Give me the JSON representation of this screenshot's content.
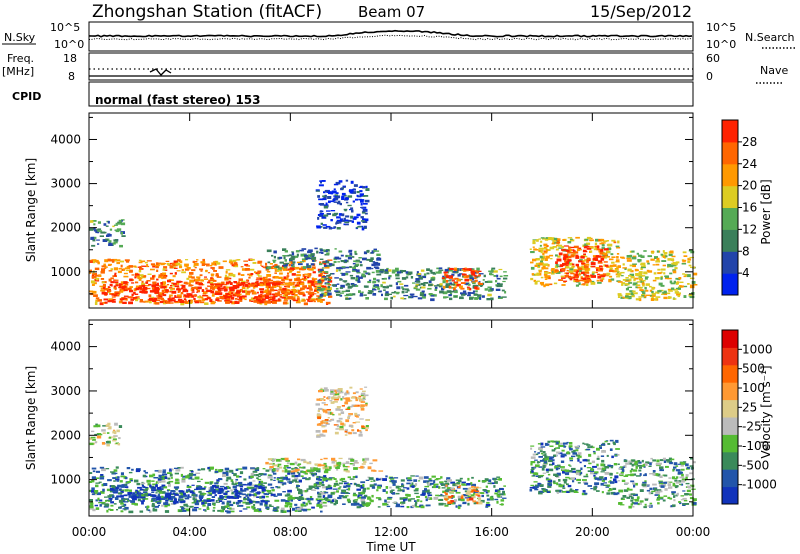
{
  "header": {
    "station": "Zhongshan Station (fitACF)",
    "beam": "Beam 07",
    "date": "15/Sep/2012"
  },
  "top_panels": {
    "nsky_label": "N.Sky",
    "nsky_ticks": [
      "10^5",
      "10^0"
    ],
    "nsearch_label": "N.Search",
    "nsearch_ticks": [
      "10^5",
      "10^0"
    ],
    "freq_label": "Freq.",
    "freq_unit": "[MHz]",
    "freq_ticks": [
      "18",
      "8"
    ],
    "nave_label": "Nave",
    "nave_ticks": [
      "60",
      "0"
    ],
    "cpid_label": "CPID",
    "cpid_value": "normal (fast stereo) 153"
  },
  "colors": {
    "power_scale": [
      "#0022ee",
      "#2244aa",
      "#3a7f5a",
      "#55aa55",
      "#ddcc22",
      "#ff9900",
      "#ff6600",
      "#ff2200"
    ],
    "velocity_scale": [
      "#1133bb",
      "#2255aa",
      "#3a8a5a",
      "#55bb33",
      "#bbbbbb",
      "#ddcc88",
      "#ff9933",
      "#ff6600",
      "#ee3311",
      "#dd0000"
    ]
  },
  "chart_data": [
    {
      "type": "heatmap",
      "name": "power",
      "ylabel": "Slant Range [km]",
      "yticks": [
        "4000",
        "3000",
        "2000",
        "1000"
      ],
      "yrange": [
        180,
        4600
      ],
      "colorbar_label": "Power [dB]",
      "colorbar_ticks": [
        "28",
        "24",
        "20",
        "16",
        "12",
        "8",
        "4"
      ],
      "colorbar_range": [
        0,
        30
      ],
      "regions": [
        {
          "t0": 0.0,
          "t1": 9.5,
          "r0": 300,
          "r1": 1300,
          "level": 0.75
        },
        {
          "t0": 0.5,
          "t1": 7.5,
          "r0": 320,
          "r1": 800,
          "level": 0.95
        },
        {
          "t0": 6.5,
          "t1": 9.5,
          "r0": 320,
          "r1": 900,
          "level": 0.85
        },
        {
          "t0": 0.0,
          "t1": 1.3,
          "r0": 1600,
          "r1": 2200,
          "level": 0.35
        },
        {
          "t0": 7.0,
          "t1": 11.5,
          "r0": 1100,
          "r1": 1550,
          "level": 0.3
        },
        {
          "t0": 9.0,
          "t1": 16.5,
          "r0": 400,
          "r1": 1100,
          "level": 0.35
        },
        {
          "t0": 14.0,
          "t1": 15.5,
          "r0": 600,
          "r1": 1100,
          "level": 0.85
        },
        {
          "t0": 17.5,
          "t1": 21.0,
          "r0": 700,
          "r1": 1800,
          "level": 0.6
        },
        {
          "t0": 18.5,
          "t1": 20.5,
          "r0": 800,
          "r1": 1600,
          "level": 0.9
        },
        {
          "t0": 21.0,
          "t1": 24.0,
          "r0": 400,
          "r1": 1500,
          "level": 0.55
        },
        {
          "t0": 9.0,
          "t1": 11.0,
          "r0": 2000,
          "r1": 3100,
          "level": 0.15
        }
      ]
    },
    {
      "type": "heatmap",
      "name": "velocity",
      "ylabel": "Slant Range [km]",
      "yticks": [
        "4000",
        "3000",
        "2000",
        "1000"
      ],
      "yrange": [
        180,
        4600
      ],
      "xlabel": "Time UT",
      "xticks": [
        "00:00",
        "04:00",
        "08:00",
        "12:00",
        "16:00",
        "20:00",
        "00:00"
      ],
      "xrange": [
        0,
        24
      ],
      "colorbar_label": "Velocity [m s⁻¹]",
      "colorbar_ticks": [
        "1000",
        "500",
        "100",
        "25",
        "-25",
        "-100",
        "-500",
        "-1000"
      ],
      "colorbar_range": [
        -1000,
        1000
      ],
      "regions": [
        {
          "t0": 0.0,
          "t1": 9.5,
          "r0": 300,
          "r1": 1300,
          "level": 0.25
        },
        {
          "t0": 0.8,
          "t1": 7.0,
          "r0": 500,
          "r1": 900,
          "level": 0.05
        },
        {
          "t0": 0.0,
          "t1": 1.2,
          "r0": 1800,
          "r1": 2300,
          "level": 0.45
        },
        {
          "t0": 7.0,
          "t1": 11.5,
          "r0": 1200,
          "r1": 1500,
          "level": 0.5
        },
        {
          "t0": 9.0,
          "t1": 16.5,
          "r0": 400,
          "r1": 1100,
          "level": 0.25
        },
        {
          "t0": 14.0,
          "t1": 15.5,
          "r0": 500,
          "r1": 900,
          "level": 0.65
        },
        {
          "t0": 17.5,
          "t1": 21.0,
          "r0": 700,
          "r1": 1900,
          "level": 0.25
        },
        {
          "t0": 21.0,
          "t1": 24.0,
          "r0": 400,
          "r1": 1500,
          "level": 0.3
        },
        {
          "t0": 9.0,
          "t1": 11.0,
          "r0": 2000,
          "r1": 3100,
          "level": 0.55
        }
      ]
    }
  ]
}
